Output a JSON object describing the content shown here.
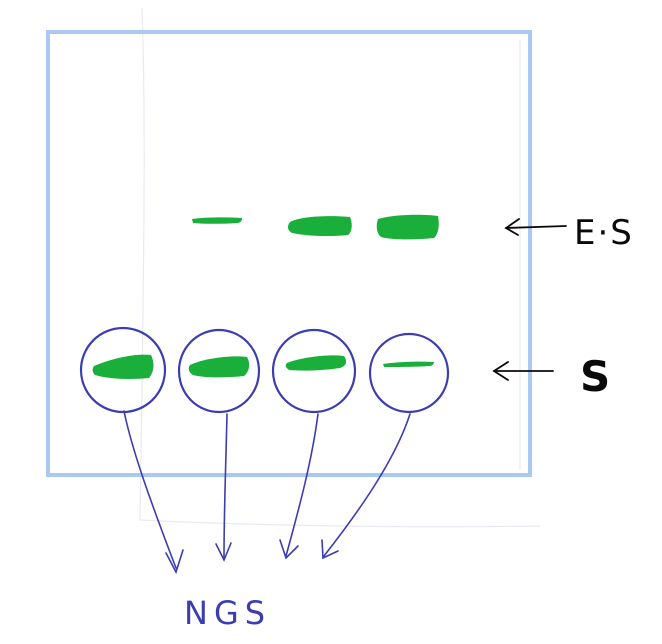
{
  "labels": {
    "es_label": "E·S",
    "s_label": "S",
    "ngs_label": "NGS"
  },
  "gel": {
    "es_lane_count": 3,
    "s_lane_count": 4,
    "es_bands": [
      {
        "lane": 1,
        "intensity": "faint"
      },
      {
        "lane": 2,
        "intensity": "strong"
      },
      {
        "lane": 3,
        "intensity": "strong"
      }
    ],
    "s_bands": [
      {
        "lane": 1,
        "intensity": "strong",
        "circled": true
      },
      {
        "lane": 2,
        "intensity": "strong",
        "circled": true
      },
      {
        "lane": 3,
        "intensity": "medium",
        "circled": true
      },
      {
        "lane": 4,
        "intensity": "faint",
        "circled": true
      }
    ]
  },
  "colors": {
    "gel_border": "#a9c8f2",
    "band_green": "#1aaf3a",
    "ink_blue": "#3b3db0",
    "ink_black": "#0a0a0a"
  }
}
